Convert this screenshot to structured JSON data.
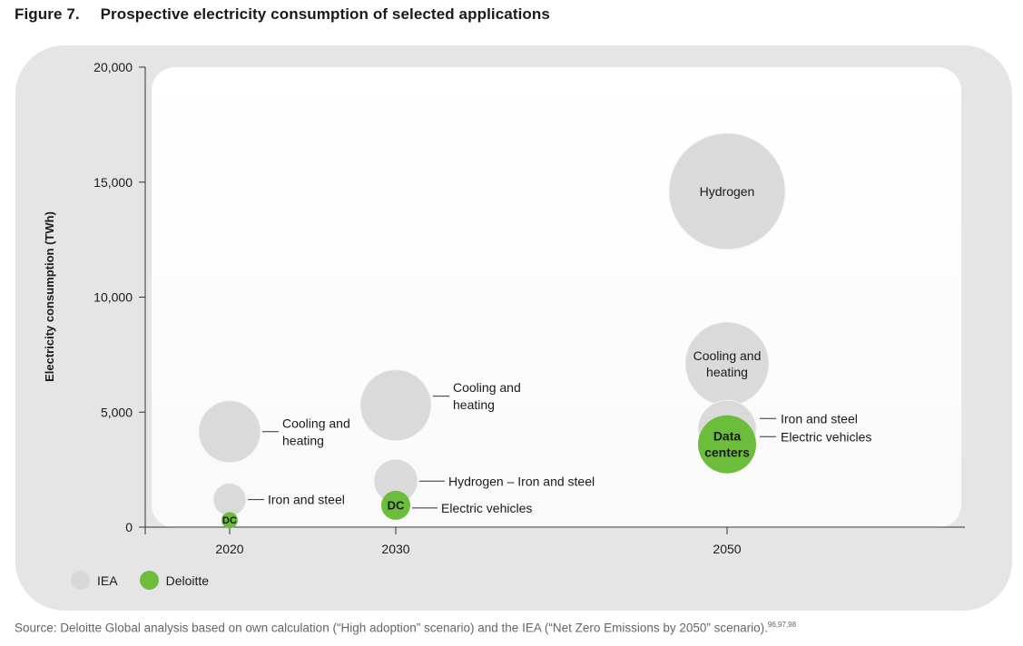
{
  "figure": {
    "number": "Figure 7.",
    "title": "Prospective electricity consumption of selected applications"
  },
  "source": {
    "text": "Source: Deloitte Global analysis based on own calculation (“High adoption” scenario) and the IEA (“Net Zero Emissions by 2050” scenario).",
    "refs": "96,97,98"
  },
  "legend": [
    {
      "label": "IEA",
      "color": "#d8d8d8"
    },
    {
      "label": "Deloitte",
      "color": "#6cbd3c"
    }
  ],
  "chart_data": {
    "type": "scatter",
    "ylabel": "Electricity consumption (TWh)",
    "xlabel": "",
    "ylim": [
      0,
      20000
    ],
    "yticks": [
      0,
      5000,
      10000,
      15000,
      20000
    ],
    "ytick_labels": [
      "0",
      "5,000",
      "10,000",
      "15,000",
      "20,000"
    ],
    "x_categories": [
      "2020",
      "2030",
      "2050"
    ],
    "grid": false,
    "legend_position": "bottom-left",
    "points": [
      {
        "year": "2020",
        "y": 4150,
        "source": "IEA",
        "bubble_label": "",
        "callout": [
          "Cooling and",
          "heating"
        ]
      },
      {
        "year": "2020",
        "y": 1200,
        "source": "IEA",
        "bubble_label": "",
        "callout": [
          "Iron and steel"
        ]
      },
      {
        "year": "2020",
        "y": 300,
        "source": "Deloitte",
        "bubble_label": "DC",
        "callout": []
      },
      {
        "year": "2030",
        "y": 5300,
        "source": "IEA",
        "bubble_label": "",
        "callout": [
          "Cooling and",
          "heating"
        ]
      },
      {
        "year": "2030",
        "y": 2000,
        "source": "IEA",
        "bubble_label": "",
        "callout": [
          "Hydrogen – Iron and steel"
        ]
      },
      {
        "year": "2030",
        "y": 950,
        "source": "Deloitte",
        "bubble_label": "DC",
        "callout": [
          "Electric vehicles"
        ]
      },
      {
        "year": "2050",
        "y": 14600,
        "source": "IEA",
        "bubble_label": "Hydrogen",
        "callout": []
      },
      {
        "year": "2050",
        "y": 7100,
        "source": "IEA",
        "bubble_label": "Cooling and heating",
        "callout": []
      },
      {
        "year": "2050",
        "y": 4250,
        "source": "IEA",
        "bubble_label": "",
        "callout": [
          "Iron and steel",
          "Electric vehicles"
        ]
      },
      {
        "year": "2050",
        "y": 3600,
        "source": "Deloitte",
        "bubble_label": "Data centers",
        "callout": []
      }
    ]
  }
}
